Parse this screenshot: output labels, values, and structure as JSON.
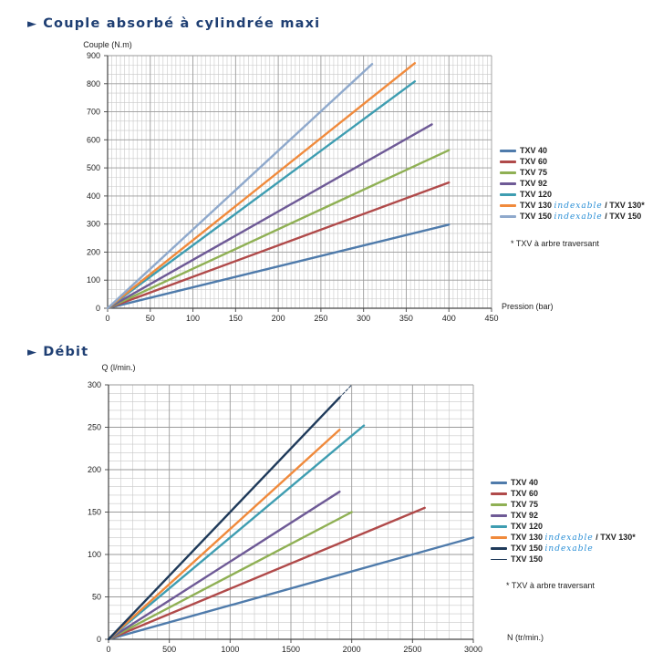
{
  "sections": [
    {
      "title": "Couple absorbé à cylindrée maxi"
    },
    {
      "title": "Débit"
    }
  ],
  "chart_data": [
    {
      "type": "line",
      "title": "Couple absorbé à cylindrée maxi",
      "ylabel": "Couple (N.m)",
      "xlabel": "Pression (bar)",
      "xlim": [
        0,
        450
      ],
      "ylim": [
        0,
        900
      ],
      "xticks": [
        0,
        50,
        100,
        150,
        200,
        250,
        300,
        350,
        400,
        450
      ],
      "yticks": [
        0,
        100,
        200,
        300,
        400,
        500,
        600,
        700,
        800,
        900
      ],
      "grid": true,
      "legend_position": "right",
      "note": "* TXV à arbre traversant",
      "series": [
        {
          "name": "TXV 40",
          "color": "#4f7bab",
          "points": [
            [
              0,
              0
            ],
            [
              400,
              298
            ]
          ]
        },
        {
          "name": "TXV 60",
          "color": "#b04a4a",
          "points": [
            [
              0,
              0
            ],
            [
              400,
              448
            ]
          ]
        },
        {
          "name": "TXV 75",
          "color": "#8fb054",
          "points": [
            [
              0,
              0
            ],
            [
              400,
              563
            ]
          ]
        },
        {
          "name": "TXV 92",
          "color": "#6e5a96",
          "points": [
            [
              0,
              0
            ],
            [
              380,
              655
            ]
          ]
        },
        {
          "name": "TXV 120",
          "color": "#3e9db1",
          "points": [
            [
              0,
              0
            ],
            [
              360,
              808
            ]
          ]
        },
        {
          "name": "TXV 130",
          "name_idx": "indexable",
          "name_suffix": " / TXV 130*",
          "color": "#f08a3c",
          "points": [
            [
              0,
              0
            ],
            [
              360,
              873
            ]
          ]
        },
        {
          "name": "TXV 150",
          "name_idx": "indexable",
          "name_suffix": " / TXV 150",
          "color": "#8fa9cc",
          "points": [
            [
              0,
              0
            ],
            [
              310,
              870
            ]
          ]
        }
      ]
    },
    {
      "type": "line",
      "title": "Débit",
      "ylabel": "Q (l/min.)",
      "xlabel": "N (tr/min.)",
      "xlim": [
        0,
        3000
      ],
      "ylim": [
        0,
        300
      ],
      "xticks": [
        0,
        500,
        1000,
        1500,
        2000,
        2500,
        3000
      ],
      "yticks": [
        0,
        50,
        100,
        150,
        200,
        250,
        300
      ],
      "grid": true,
      "legend_position": "right",
      "note": "* TXV à arbre traversant",
      "series": [
        {
          "name": "TXV 40",
          "color": "#4f7bab",
          "points": [
            [
              0,
              0
            ],
            [
              3000,
              120
            ]
          ]
        },
        {
          "name": "TXV 60",
          "color": "#b04a4a",
          "points": [
            [
              0,
              0
            ],
            [
              2600,
              155
            ]
          ]
        },
        {
          "name": "TXV 75",
          "color": "#8fb054",
          "points": [
            [
              0,
              0
            ],
            [
              2000,
              150
            ]
          ]
        },
        {
          "name": "TXV 92",
          "color": "#6e5a96",
          "points": [
            [
              0,
              0
            ],
            [
              1900,
              174
            ]
          ]
        },
        {
          "name": "TXV 120",
          "color": "#3e9db1",
          "points": [
            [
              0,
              0
            ],
            [
              2100,
              252
            ]
          ]
        },
        {
          "name": "TXV 130",
          "name_idx": "indexable",
          "name_suffix": " / TXV 130*",
          "color": "#f08a3c",
          "points": [
            [
              0,
              0
            ],
            [
              1900,
              247
            ]
          ]
        },
        {
          "name": "TXV 150",
          "name_idx": "indexable",
          "name_suffix": "",
          "color": "#1f3a5a",
          "points": [
            [
              0,
              0
            ],
            [
              1900,
              285
            ]
          ]
        },
        {
          "name": "TXV 150",
          "name_idx": "",
          "name_suffix": "",
          "color": "#1f3a5a",
          "thin": true,
          "dashed": true,
          "points": [
            [
              1900,
              285
            ],
            [
              2000,
              300
            ]
          ]
        }
      ]
    }
  ]
}
